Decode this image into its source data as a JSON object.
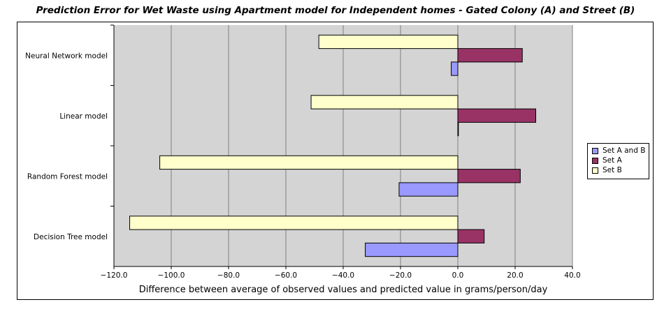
{
  "chart_data": {
    "type": "bar",
    "orientation": "horizontal",
    "title": "Prediction Error for Wet Waste using Apartment model for Independent homes - Gated Colony (A) and Street (B)",
    "xlabel": "Difference between average of observed values and predicted value in grams/person/day",
    "ylabel": "",
    "xlim": [
      -120,
      40
    ],
    "x_ticks": [
      "−120.0",
      "−100.0",
      "−80.0",
      "−60.0",
      "−40.0",
      "−20.0",
      "0.0",
      "20.0",
      "40.0"
    ],
    "categories": [
      "Neural Network model",
      "Linear model",
      "Random Forest model",
      "Decision Tree model"
    ],
    "series": [
      {
        "name": "Set A and B",
        "color": "#9999ff",
        "values": [
          -2.3,
          0.2,
          -20.5,
          -32.3
        ]
      },
      {
        "name": "Set A",
        "color": "#993366",
        "values": [
          22.5,
          27.2,
          21.8,
          9.2
        ]
      },
      {
        "name": "Set B",
        "color": "#ffffcc",
        "values": [
          -48.5,
          -51.2,
          -104.0,
          -114.5
        ]
      }
    ],
    "grid": true,
    "plot_background": "#d4d4d4",
    "legend_position": "right"
  }
}
